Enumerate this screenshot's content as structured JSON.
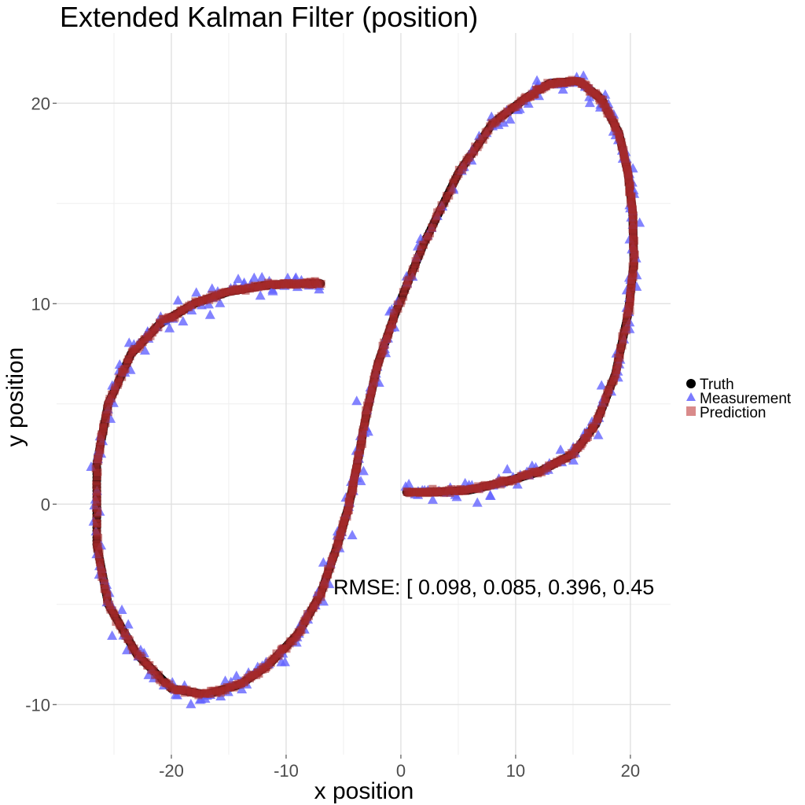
{
  "chart_data": {
    "type": "scatter",
    "title": "Extended Kalman Filter (position)",
    "xlabel": "x position",
    "ylabel": "y position",
    "xlim": [
      -30,
      23.5
    ],
    "ylim": [
      -12.5,
      23.5
    ],
    "x_ticks": [
      -20,
      -10,
      0,
      10,
      20
    ],
    "y_ticks": [
      -10,
      0,
      10,
      20
    ],
    "x_tick_labels": [
      "-20",
      "-10",
      "0",
      "10",
      "20"
    ],
    "y_tick_labels": [
      "-10",
      "0",
      "10",
      "20"
    ],
    "grid": true,
    "legend_position": "right",
    "annotation": {
      "text": "RMSE: [ 0.098, 0.085, 0.396, 0.45",
      "x": -6,
      "y": -4.1
    },
    "series": [
      {
        "name": "Truth",
        "marker": "circle",
        "color": "#000000",
        "path_x": [
          0.5,
          3,
          6,
          9,
          12,
          15,
          17,
          18.7,
          19.8,
          20.3,
          20.2,
          19.8,
          19,
          17.5,
          15.5,
          13,
          11,
          8,
          5,
          2,
          -0.5,
          -2,
          -3,
          -3.8,
          -4.5,
          -5.5,
          -7,
          -9,
          -11.5,
          -14,
          -17,
          -20,
          -23,
          -25.5,
          -26.5,
          -26.5,
          -25.5,
          -23.5,
          -21,
          -18,
          -15,
          -12,
          -9.5,
          -7
        ],
        "path_y": [
          0.6,
          0.6,
          0.7,
          1.1,
          1.6,
          2.5,
          4,
          6.5,
          9.5,
          12,
          14.5,
          16.5,
          18.5,
          20.2,
          21.1,
          21,
          20.3,
          19,
          16.5,
          13,
          9.5,
          7,
          4.5,
          2,
          0,
          -2,
          -4.5,
          -6.5,
          -8,
          -9,
          -9.5,
          -9.2,
          -7.5,
          -5,
          -2,
          2,
          5,
          7.5,
          9,
          10,
          10.6,
          10.9,
          11,
          11
        ]
      },
      {
        "name": "Measurement",
        "marker": "triangle",
        "color": "#6464ff",
        "opacity": 0.8
      },
      {
        "name": "Prediction",
        "marker": "square",
        "color": "#d98a8a"
      }
    ],
    "colors": {
      "truth": "#000000",
      "measurement": "#6464ff",
      "prediction_legend": "#d98a8a",
      "prediction_points": "#a52a2a",
      "grid_major": "#dedede",
      "grid_minor": "#efefef"
    }
  }
}
